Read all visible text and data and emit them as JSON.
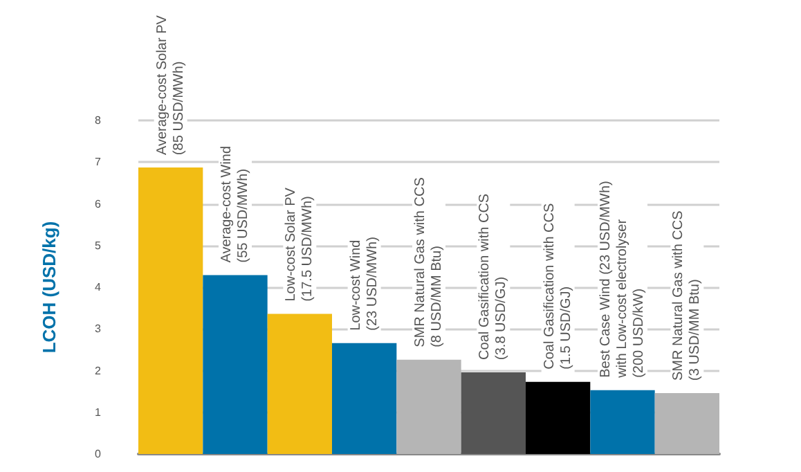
{
  "chart_data": {
    "type": "bar",
    "ylabel": "LCOH (USD/kg)",
    "categories": [
      "Average-cost Solar PV\n(85 USD/MWh)",
      "Average-cost Wind\n(55 USD/MWh)",
      "Low-cost Solar PV\n(17.5 USD/MWh)",
      "Low-cost Wind\n(23 USD/MWh)",
      "SMR Natural Gas with CCS\n(8 USD/MM Btu)",
      "Coal Gasification with CCS\n(3.8 USD/GJ)",
      "Coal Gasification with CCS\n(1.5 USD/GJ)",
      "Best Case Wind (23 USD/MWh)\nwith Low-cost electrolyser\n(200 USD/kW)",
      "SMR Natural Gas with CCS\n(3 USD/MM Btu)"
    ],
    "values": [
      6.87,
      4.29,
      3.36,
      2.66,
      2.26,
      1.96,
      1.73,
      1.53,
      1.46
    ],
    "colors": [
      "#f2bd14",
      "#0072aa",
      "#f2bd14",
      "#0072aa",
      "#b5b5b5",
      "#555555",
      "#000000",
      "#0072aa",
      "#b5b5b5"
    ],
    "ylim": [
      0,
      8
    ],
    "yticks": [
      0,
      1,
      2,
      3,
      4,
      5,
      6,
      7,
      8
    ],
    "grid": "y"
  }
}
